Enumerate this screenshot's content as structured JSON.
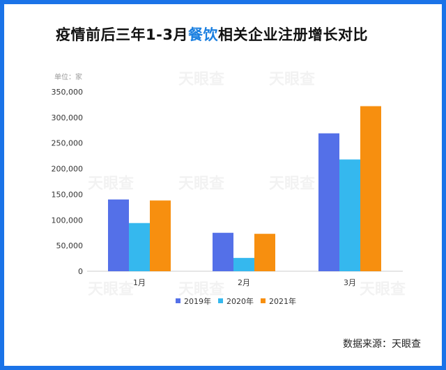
{
  "title": {
    "prefix": "疫情前后三年1-3月",
    "highlight": "餐饮",
    "suffix": "相关企业注册增长对比"
  },
  "source": "数据来源：天眼查",
  "watermark": "天眼查",
  "colors": {
    "2019年": "#5470e8",
    "2020年": "#35b8ee",
    "2021年": "#f78f0f",
    "highlight": "#1a7fe0",
    "border": "#1a73e8"
  },
  "chart_data": {
    "type": "bar",
    "title": "",
    "ylabel": "单位：家",
    "xlabel": "",
    "categories": [
      "1月",
      "2月",
      "3月"
    ],
    "series": [
      {
        "name": "2019年",
        "values": [
          140000,
          75000,
          269000
        ]
      },
      {
        "name": "2020年",
        "values": [
          94000,
          26000,
          218000
        ]
      },
      {
        "name": "2021年",
        "values": [
          138000,
          73000,
          322000
        ]
      }
    ],
    "ylim": [
      0,
      350000
    ],
    "yticks": [
      0,
      50000,
      100000,
      150000,
      200000,
      250000,
      300000,
      350000
    ],
    "ytick_labels": [
      "0",
      "50,000",
      "100,000",
      "150,000",
      "200,000",
      "250,000",
      "300,000",
      "350,000"
    ],
    "legend": "bottom",
    "grid": false
  }
}
